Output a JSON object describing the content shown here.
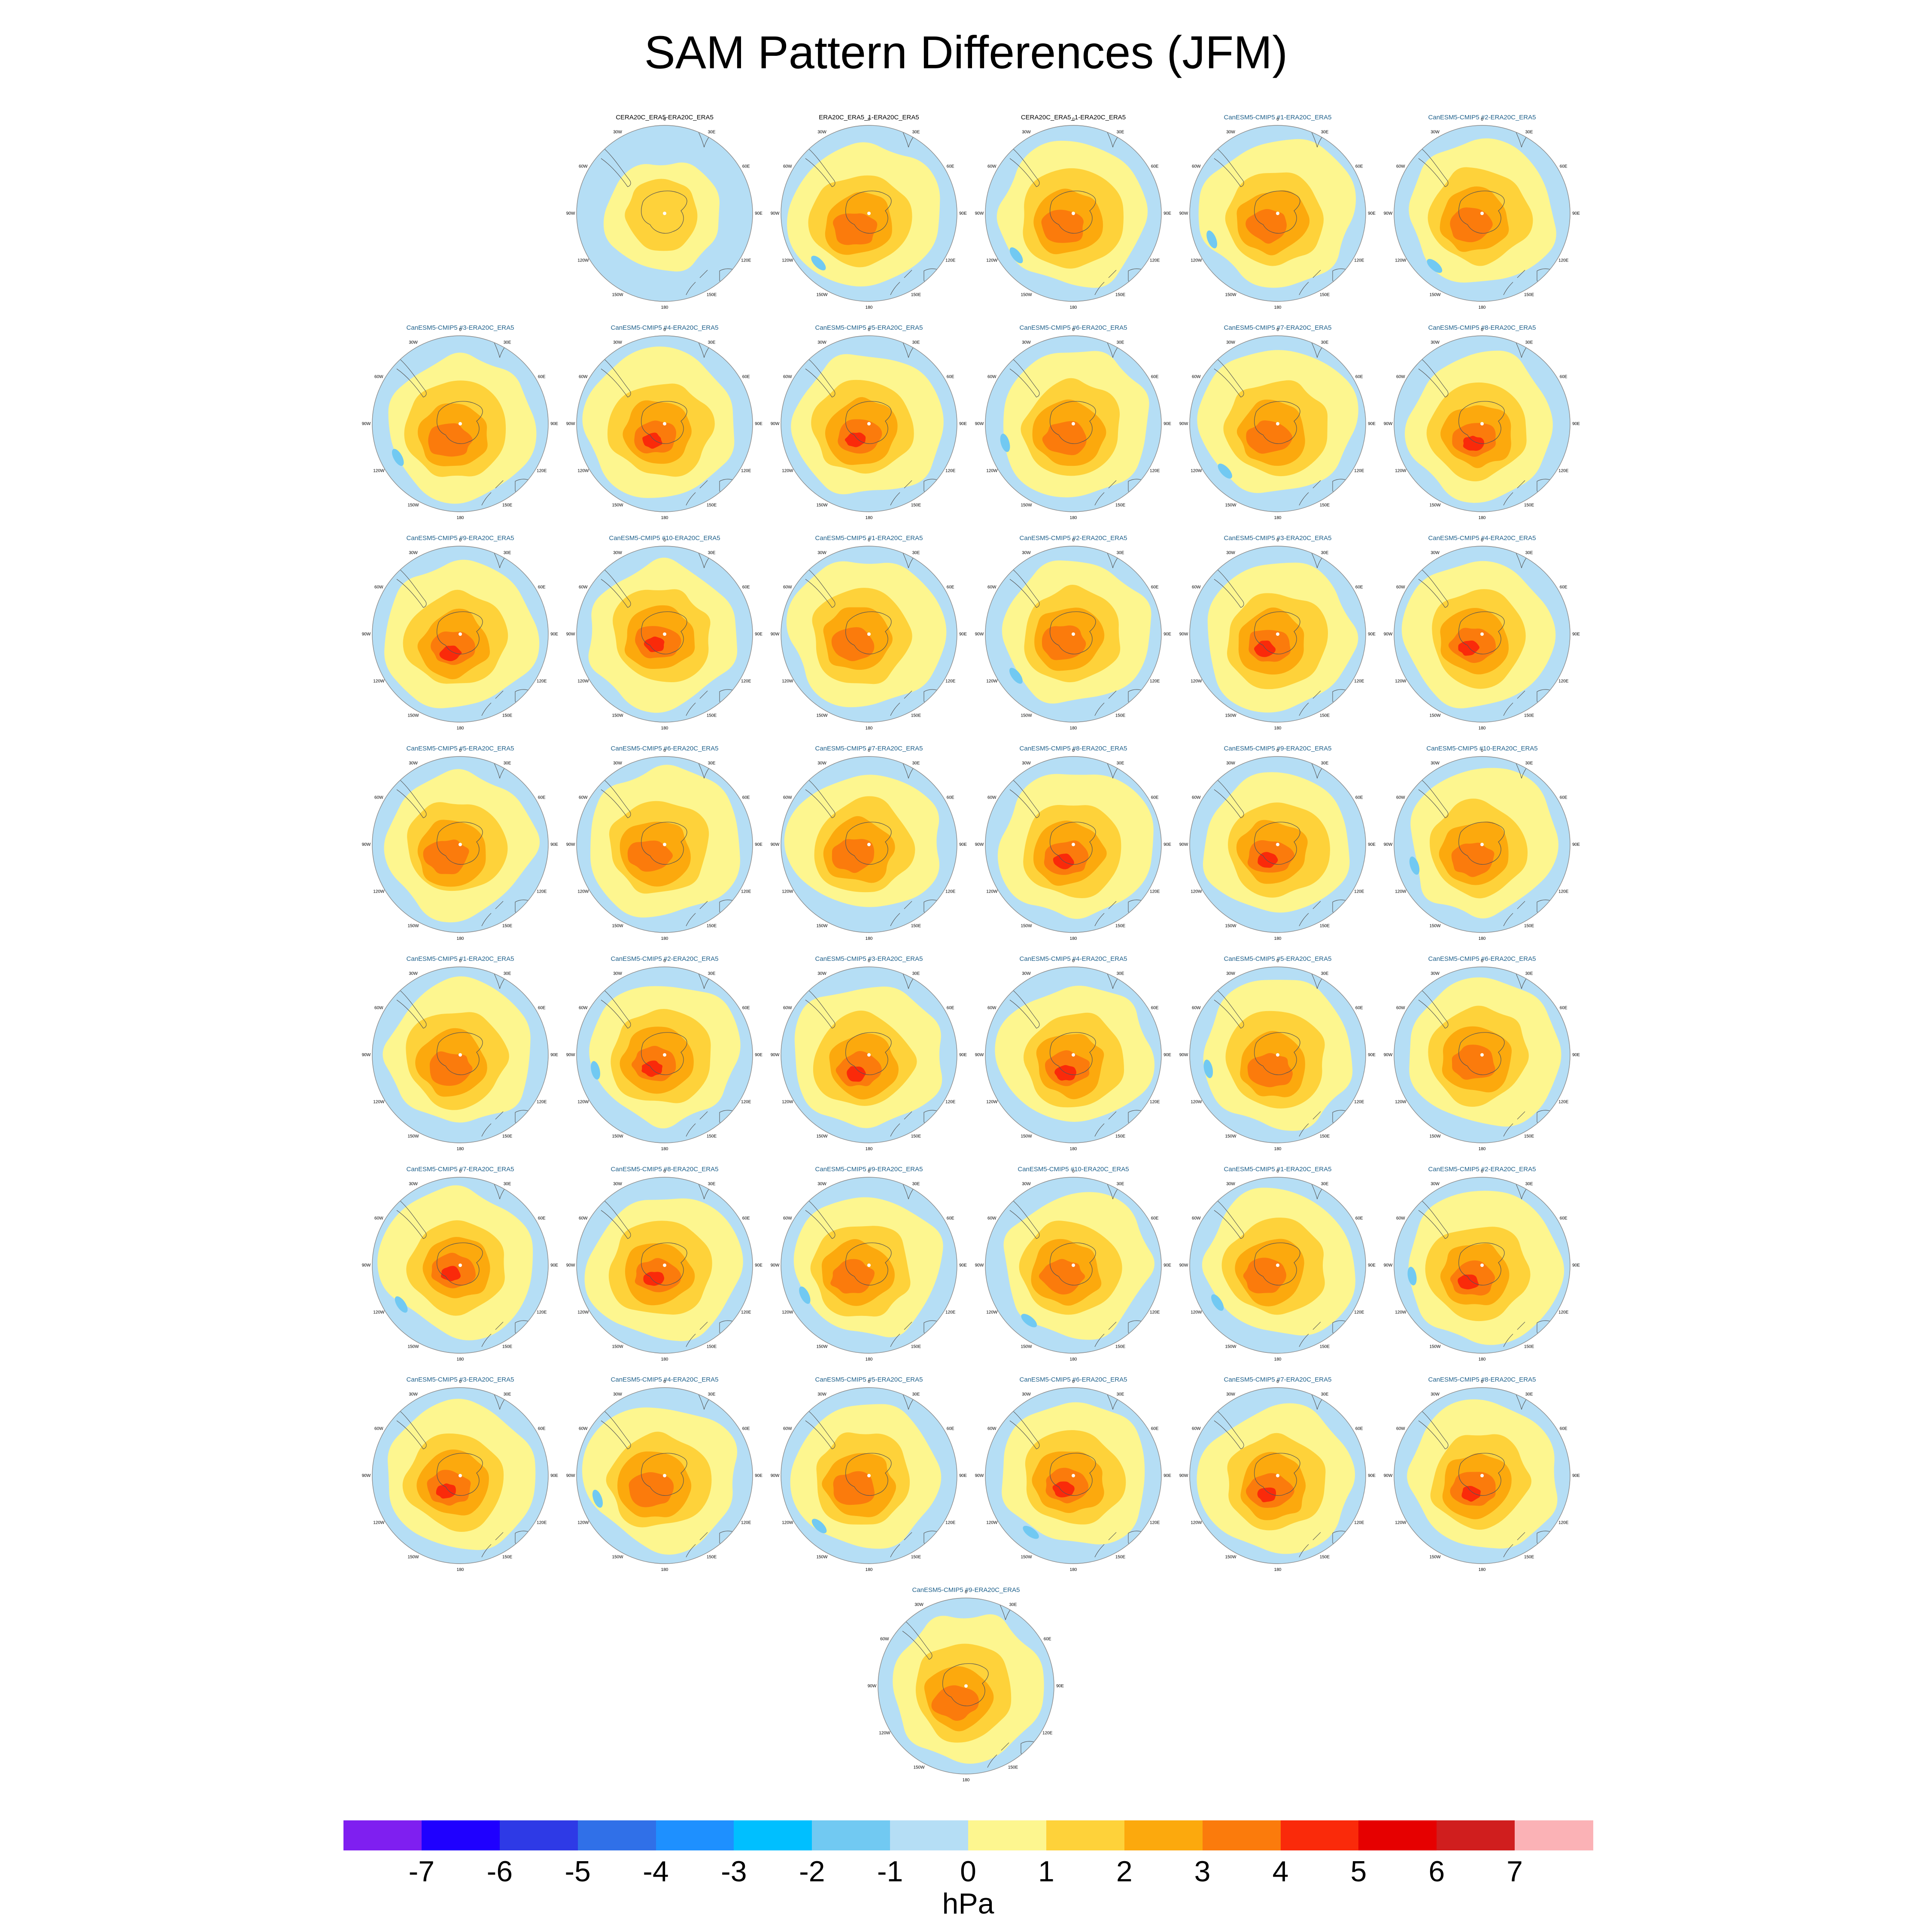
{
  "title": "SAM Pattern Differences (JFM)",
  "colors": {
    "title_reference": "#000000",
    "title_model": "#1d5f8a",
    "map_outline": "#8a8a8a",
    "coastline": "#555555"
  },
  "lon_labels": [
    "0",
    "30E",
    "60E",
    "90E",
    "120E",
    "150E",
    "180",
    "150W",
    "120W",
    "90W",
    "60W",
    "30W"
  ],
  "rows": [
    [
      "CERA20C_ERA5-ERA20C_ERA5",
      "ERA20C_ERA5_1-ERA20C_ERA5",
      "CERA20C_ERA5_1-ERA20C_ERA5",
      "CanESM5-CMIP5 #1-ERA20C_ERA5",
      "CanESM5-CMIP5 #2-ERA20C_ERA5"
    ],
    [
      "CanESM5-CMIP5 #3-ERA20C_ERA5",
      "CanESM5-CMIP5 #4-ERA20C_ERA5",
      "CanESM5-CMIP5 #5-ERA20C_ERA5",
      "CanESM5-CMIP5 #6-ERA20C_ERA5",
      "CanESM5-CMIP5 #7-ERA20C_ERA5",
      "CanESM5-CMIP5 #8-ERA20C_ERA5"
    ],
    [
      "CanESM5-CMIP5 #9-ERA20C_ERA5",
      "CanESM5-CMIP5 #10-ERA20C_ERA5",
      "CanESM5-CMIP5 #1-ERA20C_ERA5",
      "CanESM5-CMIP5 #2-ERA20C_ERA5",
      "CanESM5-CMIP5 #3-ERA20C_ERA5",
      "CanESM5-CMIP5 #4-ERA20C_ERA5"
    ],
    [
      "CanESM5-CMIP5 #5-ERA20C_ERA5",
      "CanESM5-CMIP5 #6-ERA20C_ERA5",
      "CanESM5-CMIP5 #7-ERA20C_ERA5",
      "CanESM5-CMIP5 #8-ERA20C_ERA5",
      "CanESM5-CMIP5 #9-ERA20C_ERA5",
      "CanESM5-CMIP5 #10-ERA20C_ERA5"
    ],
    [
      "CanESM5-CMIP5 #1-ERA20C_ERA5",
      "CanESM5-CMIP5 #2-ERA20C_ERA5",
      "CanESM5-CMIP5 #3-ERA20C_ERA5",
      "CanESM5-CMIP5 #4-ERA20C_ERA5",
      "CanESM5-CMIP5 #5-ERA20C_ERA5",
      "CanESM5-CMIP5 #6-ERA20C_ERA5"
    ],
    [
      "CanESM5-CMIP5 #7-ERA20C_ERA5",
      "CanESM5-CMIP5 #8-ERA20C_ERA5",
      "CanESM5-CMIP5 #9-ERA20C_ERA5",
      "CanESM5-CMIP5 #10-ERA20C_ERA5",
      "CanESM5-CMIP5 #1-ERA20C_ERA5",
      "CanESM5-CMIP5 #2-ERA20C_ERA5"
    ],
    [
      "CanESM5-CMIP5 #3-ERA20C_ERA5",
      "CanESM5-CMIP5 #4-ERA20C_ERA5",
      "CanESM5-CMIP5 #5-ERA20C_ERA5",
      "CanESM5-CMIP5 #6-ERA20C_ERA5",
      "CanESM5-CMIP5 #7-ERA20C_ERA5",
      "CanESM5-CMIP5 #8-ERA20C_ERA5"
    ],
    [
      "CanESM5-CMIP5 #9-ERA20C_ERA5"
    ]
  ],
  "colorbar": {
    "units": "hPa",
    "tick_labels": [
      "-7",
      "-6",
      "-5",
      "-4",
      "-3",
      "-2",
      "-1",
      "0",
      "1",
      "2",
      "3",
      "4",
      "5",
      "6",
      "7"
    ],
    "colors": [
      "#7f1ff0",
      "#1f00ff",
      "#2e3ae6",
      "#3070e8",
      "#1e90ff",
      "#00bfff",
      "#71c9f2",
      "#b5def5",
      "#fdf68f",
      "#fed23a",
      "#fca90d",
      "#fb7b0c",
      "#fa2a0a",
      "#e60000",
      "#d01e1e",
      "#fbb2b6"
    ]
  }
}
